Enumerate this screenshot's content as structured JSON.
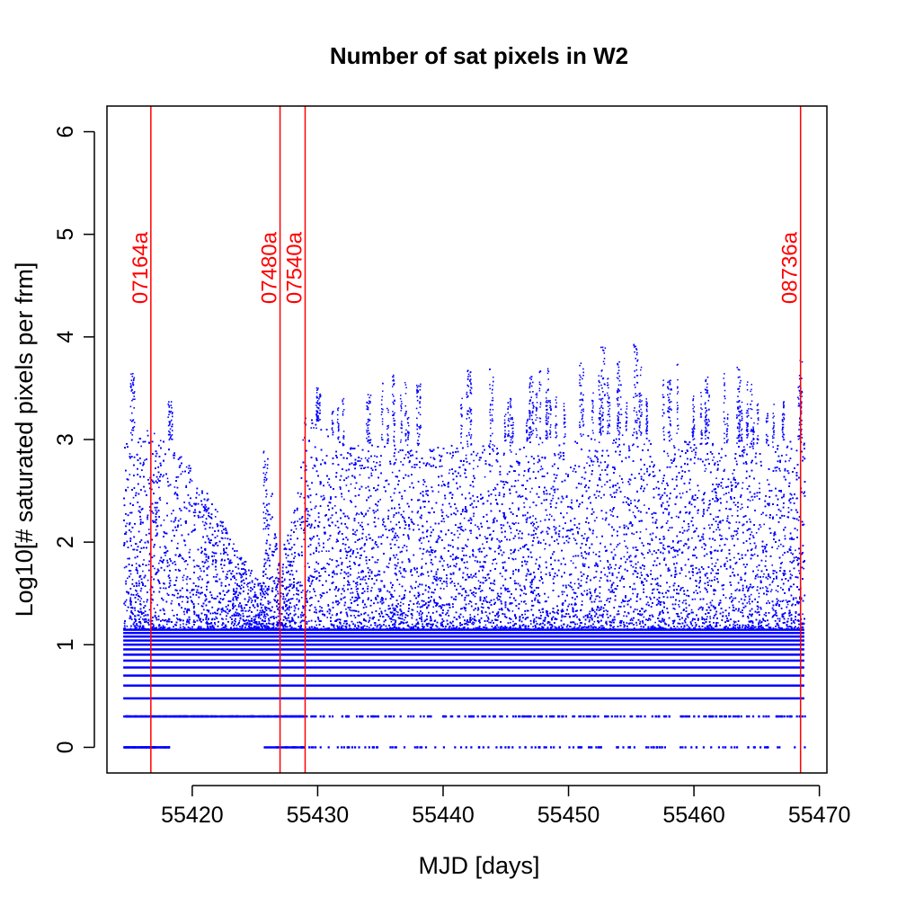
{
  "chart_data": {
    "type": "scatter",
    "title": "Number of sat pixels in W2",
    "xlabel": "MJD [days]",
    "ylabel": "Log10[# saturated pixels per frm]",
    "xlim": [
      55413.2,
      55470.6
    ],
    "ylim": [
      -0.25,
      6.25
    ],
    "xticks": [
      55420,
      55430,
      55440,
      55450,
      55460,
      55470
    ],
    "yticks": [
      0,
      1,
      2,
      3,
      4,
      5,
      6
    ],
    "grid": false,
    "series": [
      {
        "color": "#0000ff",
        "x_range": [
          55414.5,
          55468.8
        ],
        "y_range": [
          0,
          3.95
        ],
        "quantized_levels": [
          0,
          0.301,
          0.477,
          0.602,
          0.699,
          0.778,
          0.845,
          0.903,
          0.954,
          1.0,
          1.041,
          1.079,
          1.114,
          1.146
        ],
        "gaps": [
          [
            55418.2,
            55425.7
          ]
        ],
        "envelope_upper": [
          [
            55414.5,
            3.0
          ],
          [
            55416.5,
            3.1
          ],
          [
            55418.0,
            3.0
          ],
          [
            55420.0,
            2.75
          ],
          [
            55422.0,
            2.3
          ],
          [
            55424.0,
            1.85
          ],
          [
            55425.5,
            1.6
          ],
          [
            55426.2,
            2.7
          ],
          [
            55426.8,
            1.8
          ],
          [
            55428.3,
            2.4
          ],
          [
            55429.0,
            3.3
          ],
          [
            55432.0,
            2.95
          ],
          [
            55436.0,
            2.95
          ],
          [
            55440.0,
            2.95
          ],
          [
            55444.0,
            2.95
          ],
          [
            55448.0,
            3.0
          ],
          [
            55452.0,
            3.05
          ],
          [
            55456.0,
            3.05
          ],
          [
            55460.0,
            3.0
          ],
          [
            55464.0,
            2.95
          ],
          [
            55468.8,
            3.0
          ]
        ],
        "spike_peaks": [
          [
            55415.2,
            3.65
          ],
          [
            55418.2,
            3.38
          ],
          [
            55425.8,
            2.9
          ],
          [
            55430.0,
            3.45
          ],
          [
            55434.0,
            3.47
          ],
          [
            55438.0,
            3.55
          ],
          [
            55442.0,
            3.68
          ],
          [
            55447.0,
            3.63
          ],
          [
            55451.0,
            3.75
          ],
          [
            55452.7,
            3.92
          ],
          [
            55454.0,
            3.77
          ],
          [
            55455.3,
            3.95
          ],
          [
            55458.0,
            3.6
          ],
          [
            55461.0,
            3.7
          ],
          [
            55463.5,
            3.74
          ],
          [
            55468.4,
            3.82
          ]
        ]
      }
    ],
    "markers": [
      {
        "x": 55416.7,
        "label": "07164a",
        "color": "#ff0000"
      },
      {
        "x": 55427.0,
        "label": "07480a",
        "color": "#ff0000"
      },
      {
        "x": 55429.0,
        "label": "07540a",
        "color": "#ff0000"
      },
      {
        "x": 55468.5,
        "label": "08736a",
        "color": "#ff0000"
      }
    ]
  }
}
